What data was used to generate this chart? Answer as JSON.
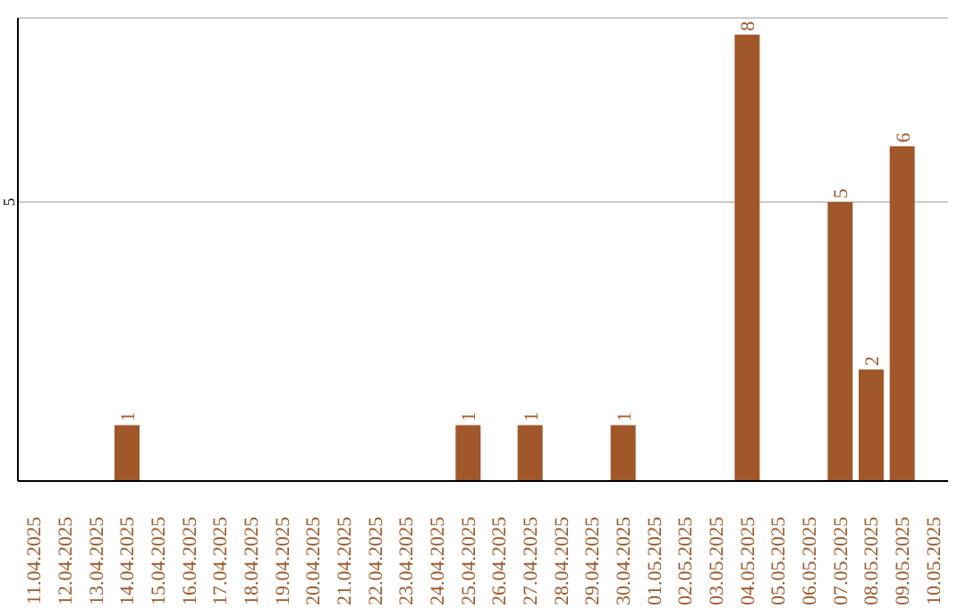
{
  "chart_data": {
    "type": "bar",
    "categories": [
      "11.04.2025",
      "12.04.2025",
      "13.04.2025",
      "14.04.2025",
      "15.04.2025",
      "16.04.2025",
      "17.04.2025",
      "18.04.2025",
      "19.04.2025",
      "20.04.2025",
      "21.04.2025",
      "22.04.2025",
      "23.04.2025",
      "24.04.2025",
      "25.04.2025",
      "26.04.2025",
      "27.04.2025",
      "28.04.2025",
      "29.04.2025",
      "30.04.2025",
      "01.05.2025",
      "02.05.2025",
      "03.05.2025",
      "04.05.2025",
      "05.05.2025",
      "06.05.2025",
      "07.05.2025",
      "08.05.2025",
      "09.05.2025",
      "10.05.2025"
    ],
    "values": [
      0,
      0,
      0,
      1,
      0,
      0,
      0,
      0,
      0,
      0,
      0,
      0,
      0,
      0,
      1,
      0,
      1,
      0,
      0,
      1,
      0,
      0,
      0,
      8,
      0,
      0,
      5,
      2,
      6,
      0
    ],
    "value_labels": [
      null,
      null,
      null,
      "1",
      null,
      null,
      null,
      null,
      null,
      null,
      null,
      null,
      null,
      null,
      "1",
      null,
      "1",
      null,
      null,
      "1",
      null,
      null,
      null,
      "8",
      null,
      null,
      "5",
      "2",
      "6",
      null
    ],
    "color": "#a0582a",
    "ylim": [
      0,
      8.3
    ],
    "yticks": [
      5
    ],
    "grid": "y"
  }
}
